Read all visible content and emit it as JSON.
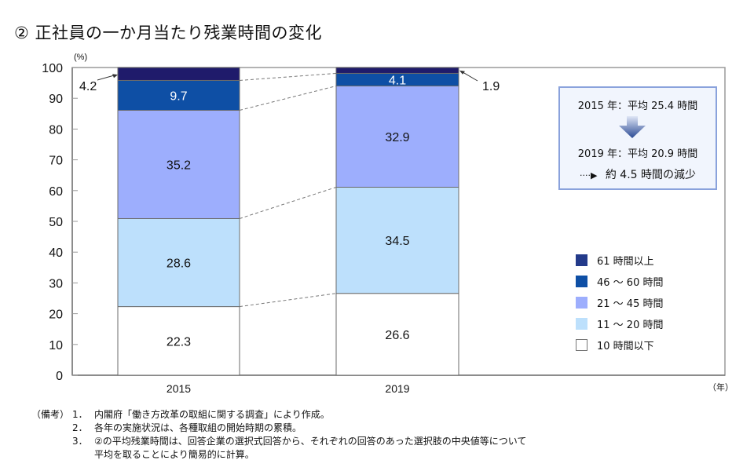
{
  "title": "② 正社員の一か月当たり残業時間の変化",
  "chart_data": {
    "type": "bar",
    "stacked": true,
    "title": "② 正社員の一か月当たり残業時間の変化",
    "xlabel": "（年）",
    "ylabel": "(%)",
    "ylim": [
      0,
      100
    ],
    "yticks": [
      0,
      10,
      20,
      30,
      40,
      50,
      60,
      70,
      80,
      90,
      100
    ],
    "categories": [
      "2015",
      "2019"
    ],
    "series": [
      {
        "name": "10 時間以下",
        "color": "#ffffff",
        "label_color": "#111111",
        "values": [
          22.3,
          26.6
        ]
      },
      {
        "name": "11 ～ 20 時間",
        "color": "#bde0fc",
        "label_color": "#111111",
        "values": [
          28.6,
          34.5
        ]
      },
      {
        "name": "21 ～ 45 時間",
        "color": "#9daefd",
        "label_color": "#111111",
        "values": [
          35.2,
          32.9
        ]
      },
      {
        "name": "46 ～ 60 時間",
        "color": "#0e4fa5",
        "label_color": "#ffffff",
        "values": [
          9.7,
          4.1
        ]
      },
      {
        "name": "61 時間以上",
        "color": "#1f1b6b",
        "label_color": "#ffffff",
        "values": [
          4.2,
          1.9
        ]
      }
    ],
    "callouts": [
      {
        "category": "2015",
        "series": "61 時間以上",
        "text": "4.2",
        "side": "left"
      },
      {
        "category": "2019",
        "series": "61 時間以上",
        "text": "1.9",
        "side": "right"
      }
    ],
    "connector_lines": "dashed",
    "legend_position": "right",
    "grid": false
  },
  "summary": {
    "line1": "2015 年：平均 25.4 時間",
    "line2": "2019 年：平均 20.9 時間",
    "arrow_glyph": "····▶",
    "result": "約 4.5 時間の減少"
  },
  "legend": [
    {
      "label": "61 時間以上",
      "color": "#233a8a"
    },
    {
      "label": "46 ～ 60 時間",
      "color": "#0e4fa5"
    },
    {
      "label": "21 ～ 45 時間",
      "color": "#9daefd"
    },
    {
      "label": "11 ～ 20 時間",
      "color": "#bde0fc"
    },
    {
      "label": "10 時間以下",
      "color": "#ffffff"
    }
  ],
  "notes": {
    "head": "（備考）",
    "items": [
      {
        "num": "1．",
        "text": "内閣府「働き方改革の取組に関する調査」により作成。"
      },
      {
        "num": "2．",
        "text": "各年の実施状況は、各種取組の開始時期の累積。"
      },
      {
        "num": "3．",
        "text": "②の平均残業時間は、回答企業の選択式回答から、それぞれの回答のあった選択肢の中央値等について"
      },
      {
        "num": "",
        "text": "平均を取ることにより簡易的に計算。"
      }
    ]
  }
}
